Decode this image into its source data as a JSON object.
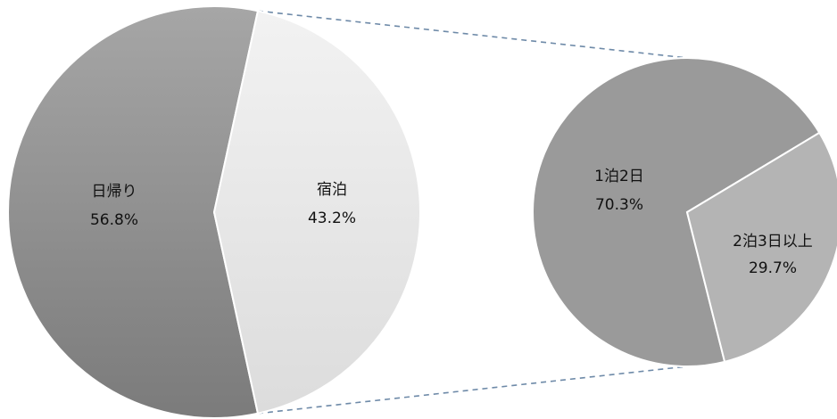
{
  "chart_data": [
    {
      "type": "pie",
      "title": "",
      "categories": [
        "日帰り",
        "宿泊"
      ],
      "values": [
        56.8,
        43.2
      ],
      "value_labels": [
        "56.8%",
        "43.2%"
      ],
      "colors": [
        "#8c8c8c",
        "#e8e8e8"
      ],
      "exploded_slice": "宿泊"
    },
    {
      "type": "pie",
      "title": "",
      "categories": [
        "1泊2日",
        "2泊3日以上"
      ],
      "values": [
        70.3,
        29.7
      ],
      "value_labels": [
        "70.3%",
        "29.7%"
      ],
      "colors": [
        "#9a9a9a",
        "#b4b4b4"
      ],
      "detail_of": "宿泊"
    }
  ],
  "connector_color": "#6e8aa8"
}
